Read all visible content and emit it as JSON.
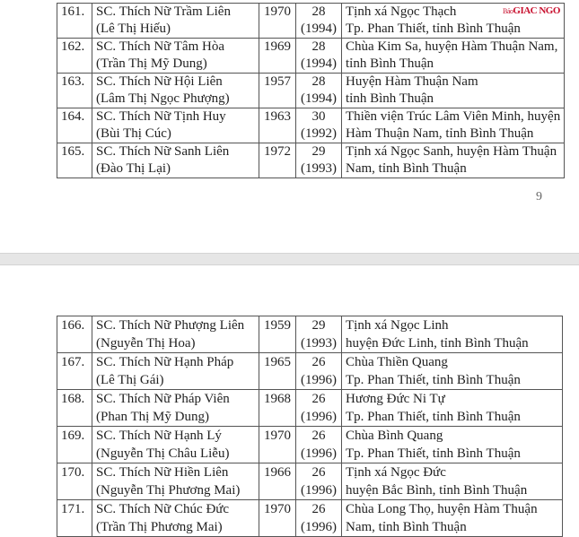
{
  "watermark": {
    "prefix": "Báo",
    "name": "GIAC NGO",
    "color": "#c8102e"
  },
  "page_number": "9",
  "table1": [
    {
      "no": "161.",
      "name": "SC. Thích Nữ Trầm Liên",
      "lay": "(Lê Thị Hiếu)",
      "born": "1970",
      "age": "28",
      "year": "(1994)",
      "addr1": "Tịnh xá Ngọc Thạch",
      "addr2": "Tp. Phan Thiết, tỉnh Bình Thuận"
    },
    {
      "no": "162.",
      "name": "SC. Thích Nữ Tâm Hòa",
      "lay": "(Trần Thị Mỹ Dung)",
      "born": "1969",
      "age": "28",
      "year": "(1994)",
      "addr1": "Chùa Kim Sa, huyện Hàm Thuận Nam,",
      "addr2": "tỉnh Bình Thuận"
    },
    {
      "no": "163.",
      "name": "SC. Thích Nữ Hội Liên",
      "lay": "(Lâm Thị Ngọc Phượng)",
      "born": "1957",
      "age": "28",
      "year": "(1994)",
      "addr1": "Huyện Hàm Thuận Nam",
      "addr2": "tỉnh Bình Thuận"
    },
    {
      "no": "164.",
      "name": "SC. Thích Nữ Tịnh Huy",
      "lay": "(Bùi Thị Cúc)",
      "born": "1963",
      "age": "30",
      "year": "(1992)",
      "addr1": "Thiền viện Trúc Lâm Viên Minh, huyện",
      "addr2": "Hàm Thuận Nam, tỉnh Bình Thuận"
    },
    {
      "no": "165.",
      "name": "SC. Thích Nữ Sanh Liên",
      "lay": "(Đào Thị Lại)",
      "born": "1972",
      "age": "29",
      "year": "(1993)",
      "addr1": "Tịnh xá Ngọc Sanh, huyện Hàm Thuận",
      "addr2": "Nam, tỉnh Bình Thuận"
    }
  ],
  "table2": [
    {
      "no": "166.",
      "name": "SC. Thích Nữ Phượng Liên",
      "lay": "(Nguyễn Thị Hoa)",
      "born": "1959",
      "age": "29",
      "year": "(1993)",
      "addr1": "Tịnh xá Ngọc Linh",
      "addr2": "huyện Đức Linh, tỉnh Bình Thuận"
    },
    {
      "no": "167.",
      "name": "SC. Thích Nữ Hạnh Pháp",
      "lay": "(Lê Thị Gái)",
      "born": "1965",
      "age": "26",
      "year": "(1996)",
      "addr1": "Chùa Thiền Quang",
      "addr2": "Tp. Phan Thiết, tỉnh Bình Thuận"
    },
    {
      "no": "168.",
      "name": "SC. Thích Nữ Pháp Viên",
      "lay": "(Phan Thị Mỹ Dung)",
      "born": "1968",
      "age": "26",
      "year": "(1996)",
      "addr1": "Hương Đức Ni Tự",
      "addr2": "Tp. Phan Thiết, tỉnh Bình Thuận"
    },
    {
      "no": "169.",
      "name": "SC. Thích Nữ Hạnh Lý",
      "lay": "(Nguyễn Thị Châu Liễu)",
      "born": "1970",
      "age": "26",
      "year": "(1996)",
      "addr1": "Chùa Bình Quang",
      "addr2": "Tp. Phan Thiết, tỉnh Bình Thuận"
    },
    {
      "no": "170.",
      "name": "SC. Thích Nữ Hiền Liên",
      "lay": "(Nguyễn Thị Phương Mai)",
      "born": "1966",
      "age": "26",
      "year": "(1996)",
      "addr1": "Tịnh xá Ngọc Đức",
      "addr2": "huyện Bắc Bình, tỉnh Bình Thuận"
    },
    {
      "no": "171.",
      "name": "SC. Thích Nữ Chúc Đức",
      "lay": "(Trần Thị Phương Mai)",
      "born": "1970",
      "age": "26",
      "year": "(1996)",
      "addr1": "Chùa Long Thọ, huyện Hàm Thuận",
      "addr2": "Nam, tỉnh Bình Thuận"
    }
  ]
}
